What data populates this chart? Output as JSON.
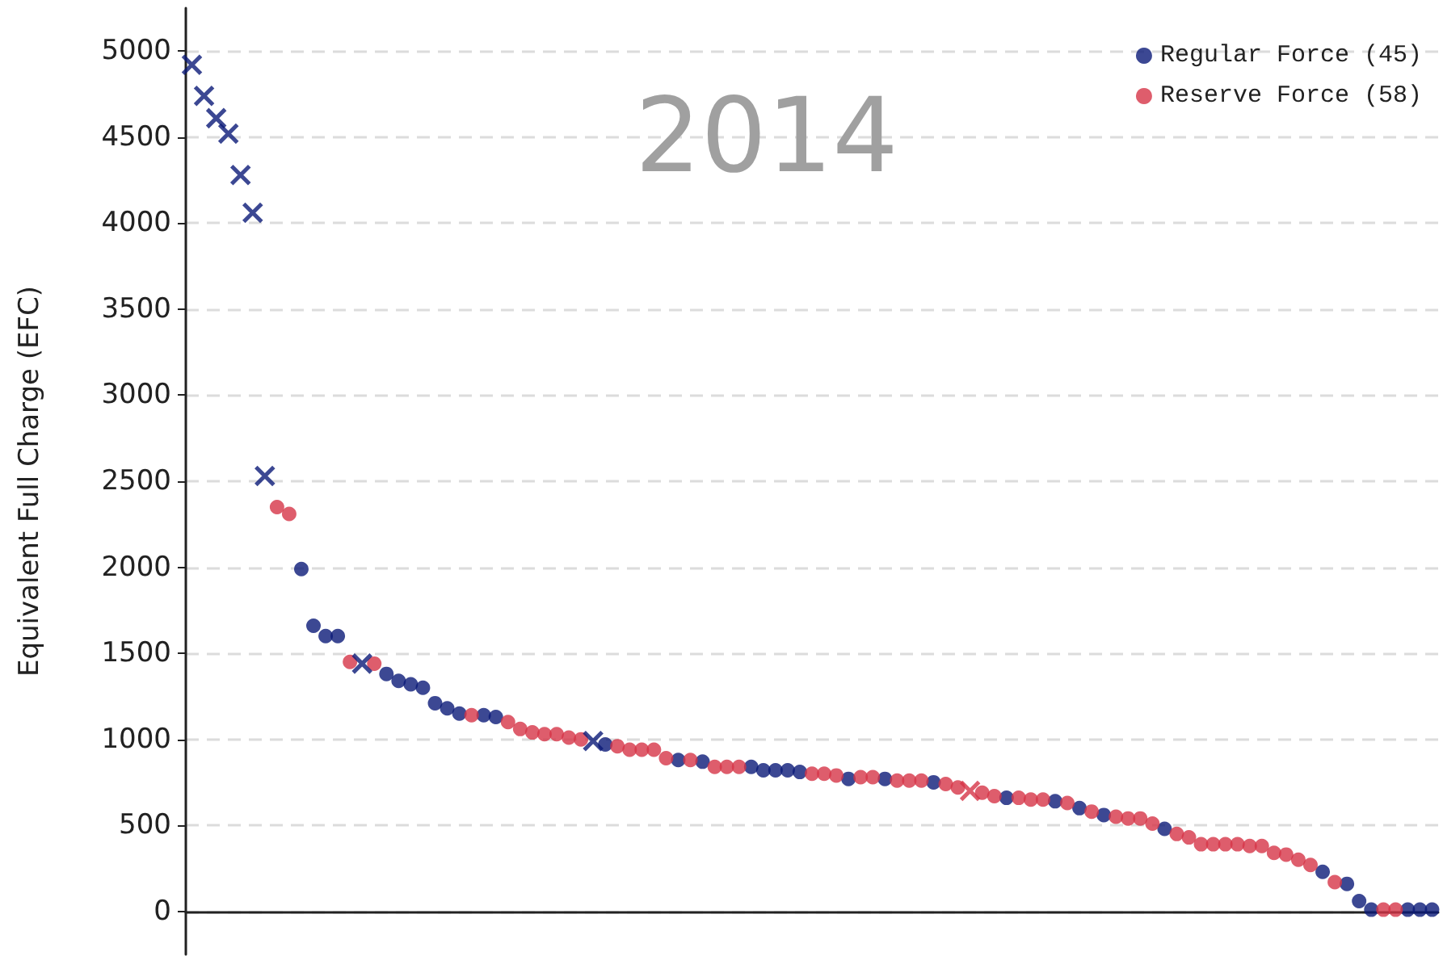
{
  "chart_data": {
    "type": "scatter",
    "title": "2014",
    "ylabel": "Equivalent Full Charge (EFC)",
    "categories": [
      null,
      null,
      null,
      null,
      null,
      null,
      null,
      null,
      null,
      null,
      null,
      null,
      null,
      null,
      null,
      null,
      null,
      null,
      null,
      null,
      null,
      null,
      null,
      null,
      null,
      null,
      null,
      null,
      null,
      null,
      null,
      null,
      null,
      null,
      null,
      null,
      null,
      null,
      null,
      null,
      null,
      null,
      null,
      null,
      null,
      null,
      null,
      null,
      null,
      null,
      null,
      null,
      null,
      null,
      null,
      null,
      null,
      null,
      null,
      null,
      null,
      null,
      null,
      null,
      null,
      null,
      null,
      null,
      null,
      null,
      null,
      null,
      null,
      null,
      null,
      null,
      null,
      null,
      null,
      null,
      null,
      null,
      null,
      null,
      null,
      null,
      null,
      null,
      null,
      null,
      null,
      null,
      null,
      null,
      null,
      null,
      null,
      null,
      null,
      null,
      null,
      null,
      null
    ],
    "series": [
      {
        "name": "Regular Force (45)",
        "color": "#0b1a78",
        "marker": "circle",
        "values": [
          null,
          null,
          null,
          null,
          null,
          null,
          null,
          null,
          null,
          1990,
          1660,
          1600,
          1600,
          null,
          null,
          null,
          1380,
          1340,
          1320,
          1300,
          1210,
          1180,
          1150,
          null,
          1140,
          1130,
          null,
          null,
          null,
          null,
          null,
          null,
          null,
          null,
          970,
          null,
          null,
          null,
          null,
          null,
          880,
          null,
          870,
          null,
          null,
          null,
          840,
          820,
          820,
          820,
          810,
          null,
          null,
          null,
          770,
          null,
          null,
          770,
          null,
          null,
          null,
          750,
          null,
          null,
          null,
          null,
          null,
          660,
          null,
          null,
          null,
          640,
          null,
          600,
          null,
          560,
          null,
          null,
          null,
          null,
          480,
          null,
          null,
          null,
          null,
          null,
          null,
          null,
          null,
          null,
          null,
          null,
          null,
          230,
          null,
          160,
          60,
          10,
          null,
          null,
          10,
          10,
          10
        ]
      },
      {
        "name": "Reserve Force (58)",
        "color": "#d63447",
        "marker": "circle",
        "values": [
          null,
          null,
          null,
          null,
          null,
          null,
          null,
          2350,
          2310,
          null,
          null,
          null,
          null,
          1450,
          null,
          1440,
          null,
          null,
          null,
          null,
          null,
          null,
          null,
          1140,
          null,
          null,
          1100,
          1060,
          1040,
          1030,
          1030,
          1010,
          1000,
          null,
          null,
          960,
          940,
          940,
          940,
          890,
          null,
          880,
          null,
          840,
          840,
          840,
          null,
          null,
          null,
          null,
          null,
          800,
          800,
          790,
          null,
          780,
          780,
          null,
          760,
          760,
          760,
          null,
          740,
          720,
          null,
          690,
          670,
          null,
          660,
          650,
          650,
          null,
          630,
          null,
          580,
          null,
          550,
          540,
          540,
          510,
          null,
          450,
          430,
          390,
          390,
          390,
          390,
          380,
          380,
          340,
          330,
          300,
          270,
          null,
          170,
          null,
          null,
          null,
          10,
          10,
          null,
          null,
          null
        ]
      },
      {
        "color": "#0b1a78",
        "marker": "cross",
        "values": [
          4920,
          4740,
          4610,
          4520,
          4280,
          4060,
          2530,
          null,
          null,
          null,
          null,
          null,
          null,
          null,
          1440,
          null,
          null,
          null,
          null,
          null,
          null,
          null,
          null,
          null,
          null,
          null,
          null,
          null,
          null,
          null,
          null,
          null,
          null,
          990,
          null,
          null,
          null,
          null,
          null,
          null,
          null,
          null,
          null,
          null,
          null,
          null,
          null,
          null,
          null,
          null,
          null,
          null,
          null,
          null,
          null,
          null,
          null,
          null,
          null,
          null,
          null,
          null,
          null,
          null,
          null,
          null,
          null,
          null,
          null,
          null,
          null,
          null,
          null,
          null,
          null,
          null,
          null,
          null,
          null,
          null,
          null,
          null,
          null,
          null,
          null,
          null,
          null,
          null,
          null,
          null,
          null,
          null,
          null,
          null,
          null,
          null,
          null,
          null,
          null,
          null,
          null,
          null,
          null
        ]
      },
      {
        "color": "#d63447",
        "marker": "cross",
        "values": [
          null,
          null,
          null,
          null,
          null,
          null,
          null,
          null,
          null,
          null,
          null,
          null,
          null,
          null,
          null,
          null,
          null,
          null,
          null,
          null,
          null,
          null,
          null,
          null,
          null,
          null,
          null,
          null,
          null,
          null,
          null,
          null,
          null,
          null,
          null,
          null,
          null,
          null,
          null,
          null,
          null,
          null,
          null,
          null,
          null,
          null,
          null,
          null,
          null,
          null,
          null,
          null,
          null,
          null,
          null,
          null,
          null,
          null,
          null,
          null,
          null,
          null,
          null,
          null,
          700,
          null,
          null,
          null,
          null,
          null,
          null,
          null,
          null,
          null,
          null,
          null,
          null,
          null,
          null,
          null,
          null,
          null,
          null,
          null,
          null,
          null,
          null,
          null,
          null,
          null,
          null,
          null,
          null,
          null,
          null,
          null,
          null,
          null,
          null,
          null,
          null,
          null,
          null
        ]
      }
    ],
    "ylim": [
      -250,
      5250
    ],
    "yticks": [
      0,
      500,
      1000,
      1500,
      2000,
      2500,
      3000,
      3500,
      4000,
      4500,
      5000
    ],
    "grid": "y",
    "legend": "top right",
    "tick_labels": "y"
  }
}
